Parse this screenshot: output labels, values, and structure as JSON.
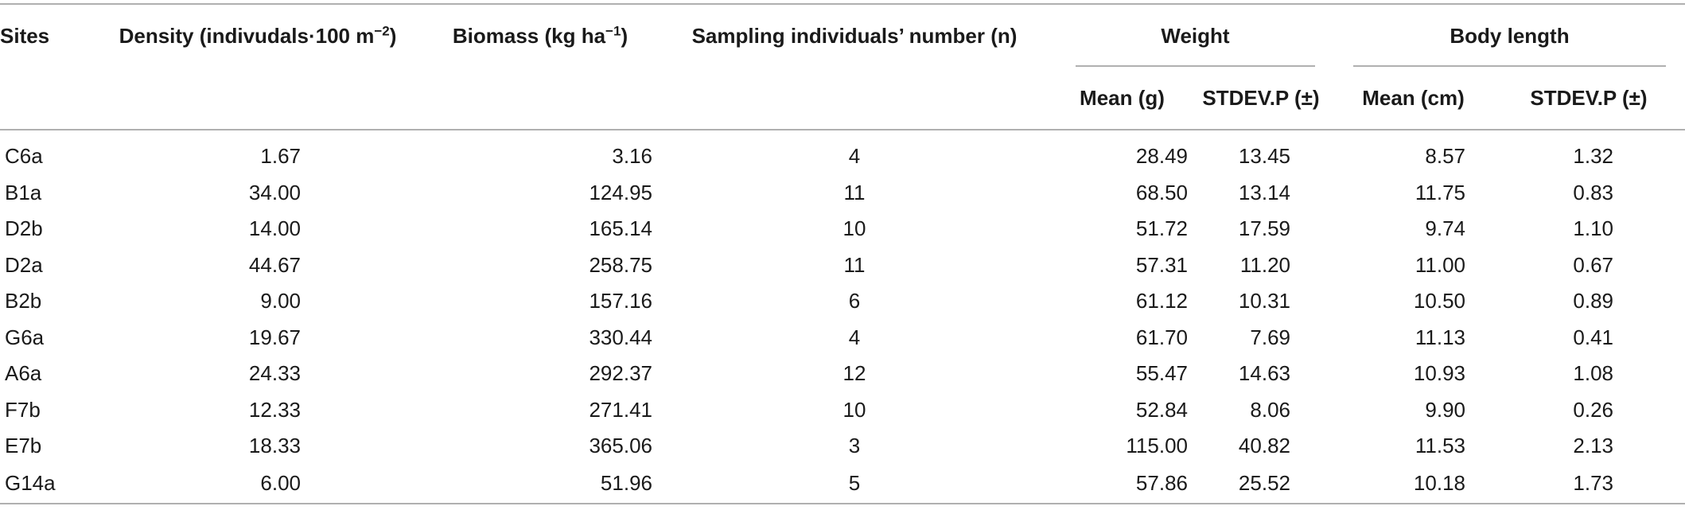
{
  "table": {
    "headers": {
      "sites": "Sites",
      "density_main": "Density (indivudals·100 m",
      "density_sup": "−2",
      "density_end": ")",
      "biomass_main": "Biomass (kg ha",
      "biomass_sup": "−1",
      "biomass_end": ")",
      "sampling": "Sampling individuals’ number (n)",
      "weight": "Weight",
      "body_length": "Body length",
      "weight_mean": "Mean (g)",
      "weight_sd": "STDEV.P (±)",
      "bl_mean": "Mean (cm)",
      "bl_sd": "STDEV.P (±)"
    },
    "rows": [
      {
        "site": "C6a",
        "density": "1.67",
        "biomass": "3.16",
        "n": "4",
        "w_mean": "28.49",
        "w_sd": "13.45",
        "bl_mean": "8.57",
        "bl_sd": "1.32"
      },
      {
        "site": "B1a",
        "density": "34.00",
        "biomass": "124.95",
        "n": "11",
        "w_mean": "68.50",
        "w_sd": "13.14",
        "bl_mean": "11.75",
        "bl_sd": "0.83"
      },
      {
        "site": "D2b",
        "density": "14.00",
        "biomass": "165.14",
        "n": "10",
        "w_mean": "51.72",
        "w_sd": "17.59",
        "bl_mean": "9.74",
        "bl_sd": "1.10"
      },
      {
        "site": "D2a",
        "density": "44.67",
        "biomass": "258.75",
        "n": "11",
        "w_mean": "57.31",
        "w_sd": "11.20",
        "bl_mean": "11.00",
        "bl_sd": "0.67"
      },
      {
        "site": "B2b",
        "density": "9.00",
        "biomass": "157.16",
        "n": "6",
        "w_mean": "61.12",
        "w_sd": "10.31",
        "bl_mean": "10.50",
        "bl_sd": "0.89"
      },
      {
        "site": "G6a",
        "density": "19.67",
        "biomass": "330.44",
        "n": "4",
        "w_mean": "61.70",
        "w_sd": "7.69",
        "bl_mean": "11.13",
        "bl_sd": "0.41"
      },
      {
        "site": "A6a",
        "density": "24.33",
        "biomass": "292.37",
        "n": "12",
        "w_mean": "55.47",
        "w_sd": "14.63",
        "bl_mean": "10.93",
        "bl_sd": "1.08"
      },
      {
        "site": "F7b",
        "density": "12.33",
        "biomass": "271.41",
        "n": "10",
        "w_mean": "52.84",
        "w_sd": "8.06",
        "bl_mean": "9.90",
        "bl_sd": "0.26"
      },
      {
        "site": "E7b",
        "density": "18.33",
        "biomass": "365.06",
        "n": "3",
        "w_mean": "115.00",
        "w_sd": "40.82",
        "bl_mean": "11.53",
        "bl_sd": "2.13"
      },
      {
        "site": "G14a",
        "density": "6.00",
        "biomass": "51.96",
        "n": "5",
        "w_mean": "57.86",
        "w_sd": "25.52",
        "bl_mean": "10.18",
        "bl_sd": "1.73"
      }
    ]
  }
}
